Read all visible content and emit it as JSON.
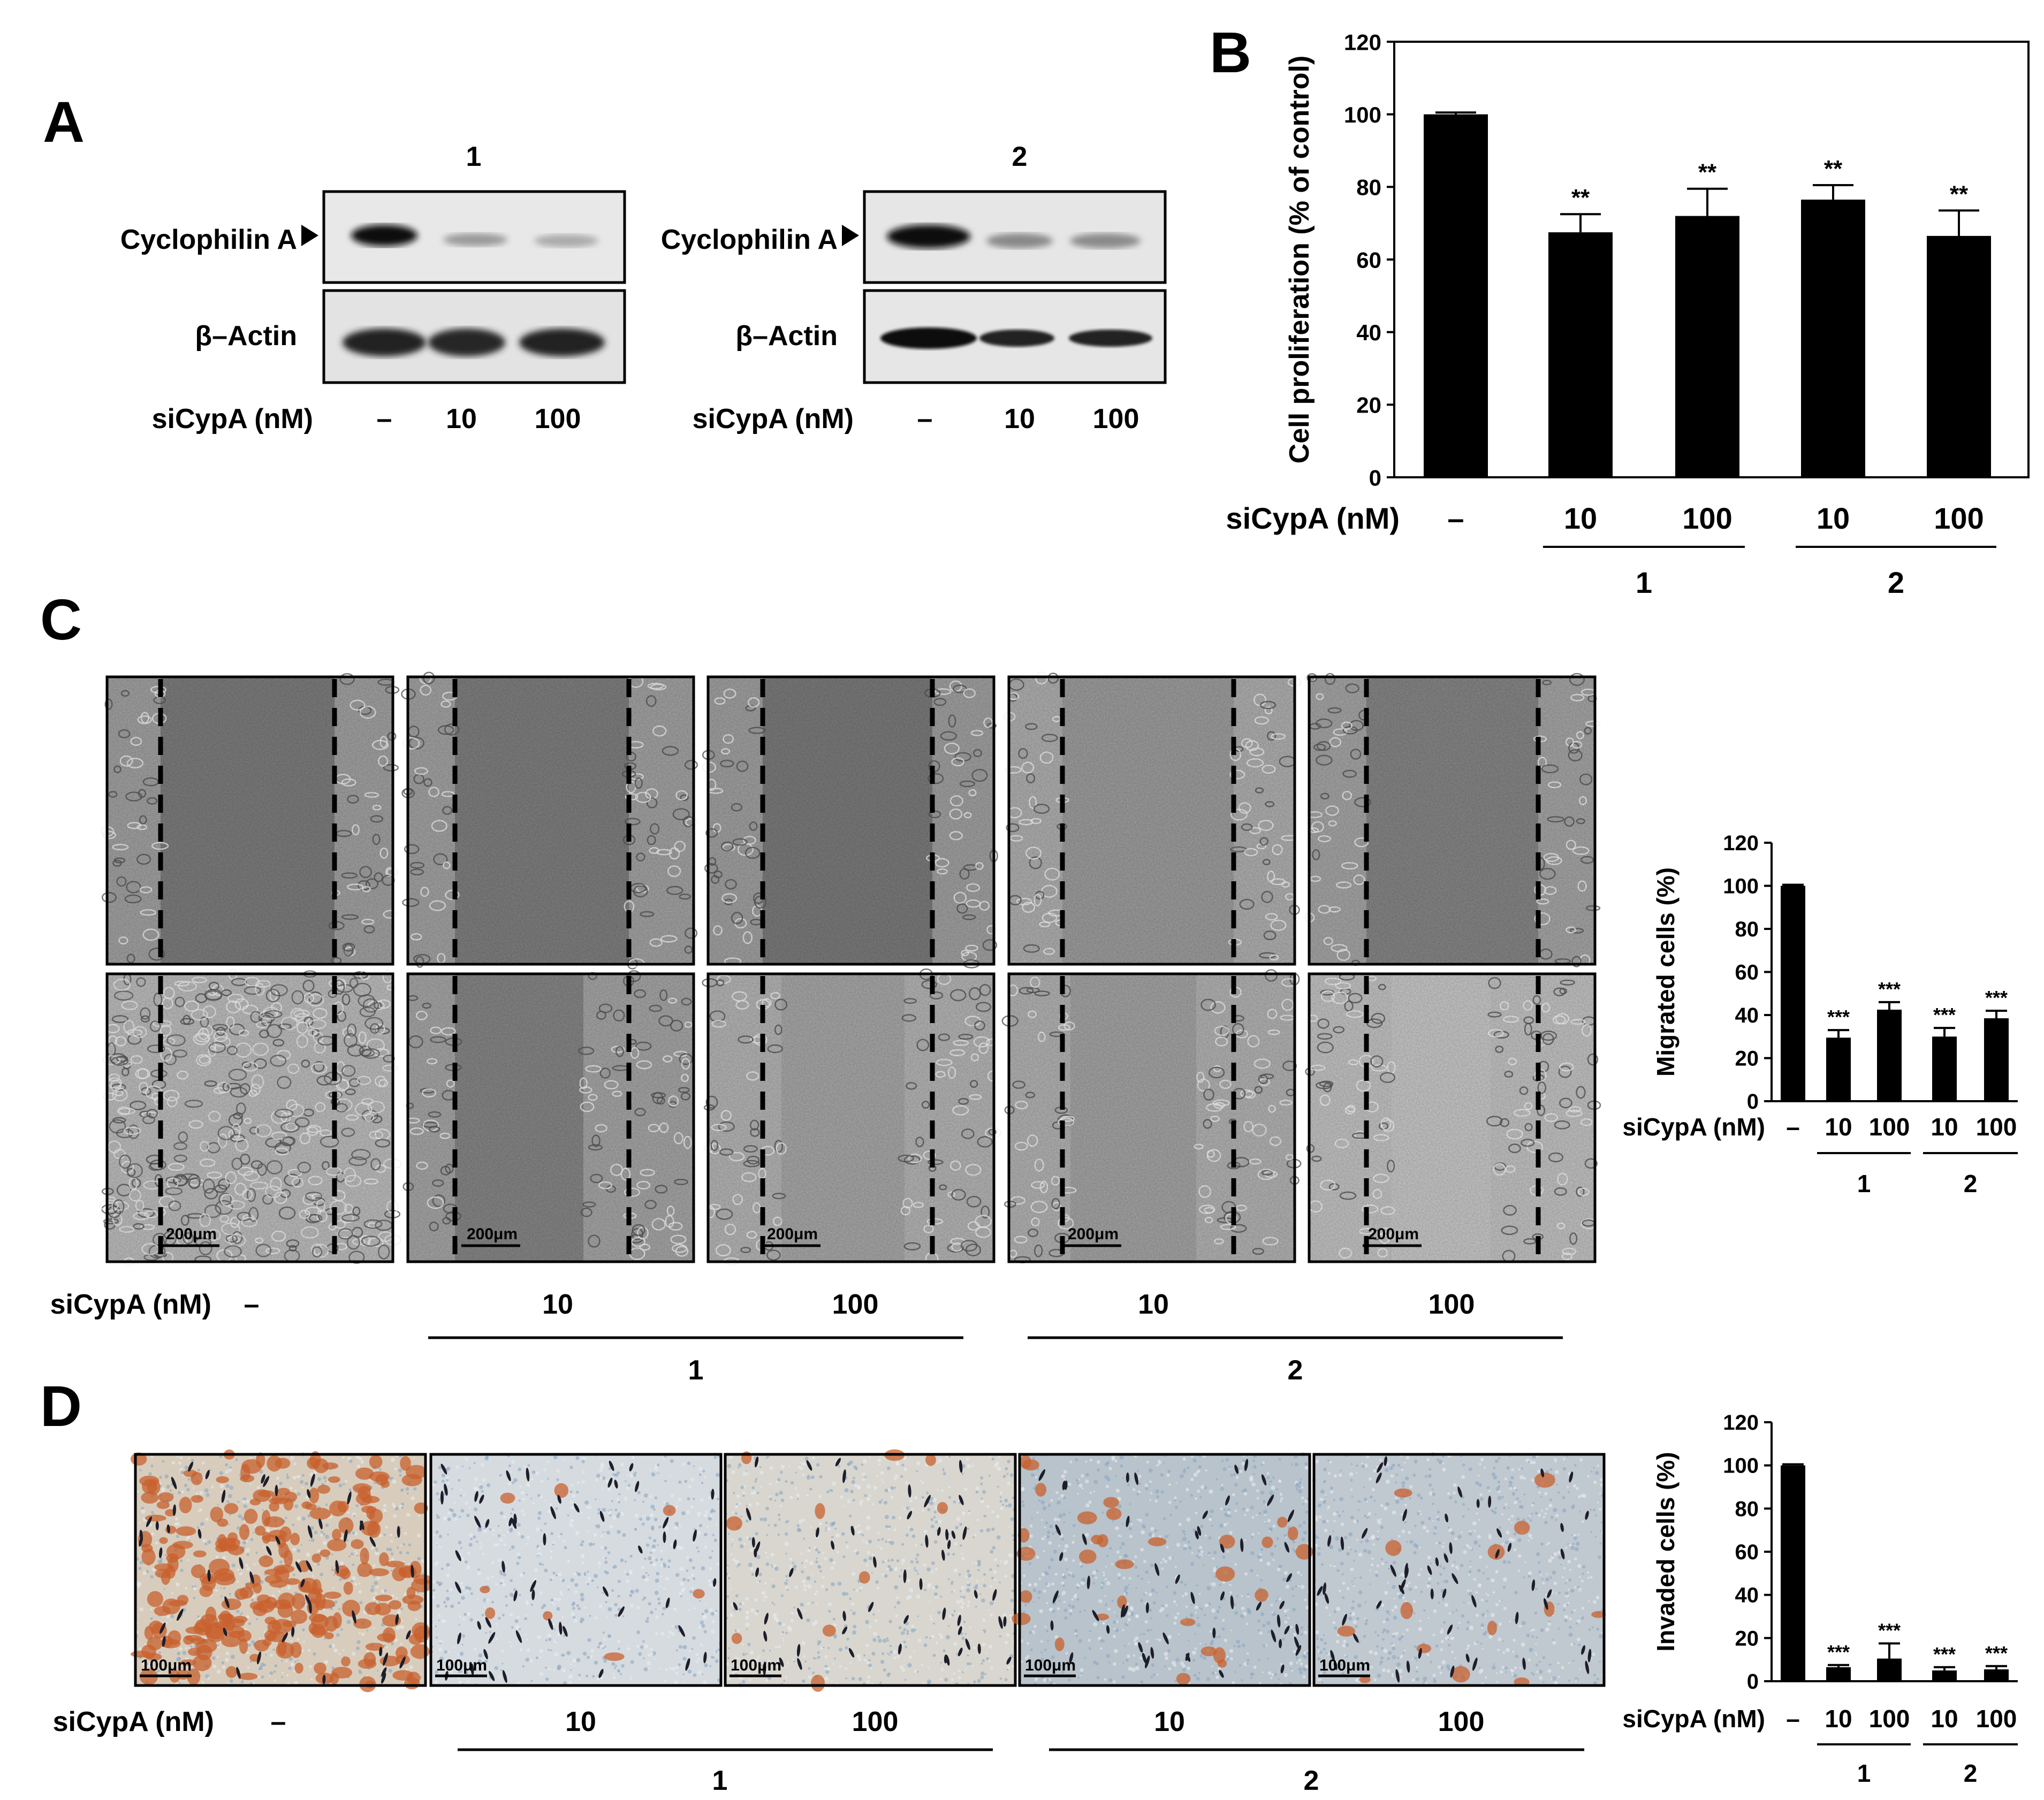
{
  "colors": {
    "bar": "#000000",
    "panel_border": "#000000",
    "western_bg": "#e6e6e6",
    "band": "#1a1a1a"
  },
  "panelA": {
    "label": "A",
    "blot1": {
      "set_label": "1",
      "protein_label": "Cyclophilin A",
      "loading_label": "β–Actin",
      "treatment_label": "siCypA (nM)",
      "lanes": [
        "–",
        "10",
        "100"
      ]
    },
    "blot2": {
      "set_label": "2",
      "protein_label": "Cyclophilin A",
      "loading_label": "β–Actin",
      "treatment_label": "siCypA (nM)",
      "lanes": [
        "–",
        "10",
        "100"
      ]
    }
  },
  "panelC": {
    "label": "C",
    "scale_bar": "200μm",
    "treatment_label": "siCypA (nM)",
    "lanes": [
      "–",
      "10",
      "100",
      "10",
      "100"
    ],
    "groups": [
      "1",
      "2"
    ]
  },
  "panelD": {
    "label": "D",
    "scale_bar": "100μm",
    "treatment_label": "siCypA (nM)",
    "lanes": [
      "–",
      "10",
      "100",
      "10",
      "100"
    ],
    "groups": [
      "1",
      "2"
    ]
  },
  "chart_data": [
    {
      "panel": "B",
      "type": "bar",
      "ylabel": "Cell proliferation (% of control)",
      "xlabel": "siCypA (nM)",
      "categories": [
        "–",
        "10",
        "100",
        "10",
        "100"
      ],
      "groups": [
        "1",
        "2"
      ],
      "values": [
        100,
        67.5,
        72,
        76.5,
        66.5
      ],
      "errors": [
        0.5,
        5,
        7.5,
        4,
        7
      ],
      "significance": [
        "",
        "**",
        "**",
        "**",
        "**"
      ],
      "ylim": [
        0,
        120
      ],
      "yticks": [
        "0",
        "20",
        "40",
        "60",
        "80",
        "100",
        "120"
      ]
    },
    {
      "panel": "C",
      "type": "bar",
      "ylabel": "Migrated cells (%)",
      "xlabel": "siCypA (nM)",
      "categories": [
        "–",
        "10",
        "100",
        "10",
        "100"
      ],
      "groups": [
        "1",
        "2"
      ],
      "values": [
        100,
        29.5,
        42.5,
        30,
        38.5
      ],
      "errors": [
        0.5,
        3.5,
        3.5,
        4,
        3.5
      ],
      "significance": [
        "",
        "***",
        "***",
        "***",
        "***"
      ],
      "ylim": [
        0,
        120
      ],
      "yticks": [
        "0",
        "20",
        "40",
        "60",
        "80",
        "100",
        "120"
      ]
    },
    {
      "panel": "D",
      "type": "bar",
      "ylabel": "Invaded cells (%)",
      "xlabel": "siCypA (nM)",
      "categories": [
        "–",
        "10",
        "100",
        "10",
        "100"
      ],
      "groups": [
        "1",
        "2"
      ],
      "values": [
        100,
        6.5,
        10.5,
        5,
        5.5
      ],
      "errors": [
        0.5,
        1,
        7,
        1.5,
        1.5
      ],
      "significance": [
        "",
        "***",
        "***",
        "***",
        "***"
      ],
      "ylim": [
        0,
        120
      ],
      "yticks": [
        "0",
        "20",
        "40",
        "60",
        "80",
        "100",
        "120"
      ]
    }
  ]
}
